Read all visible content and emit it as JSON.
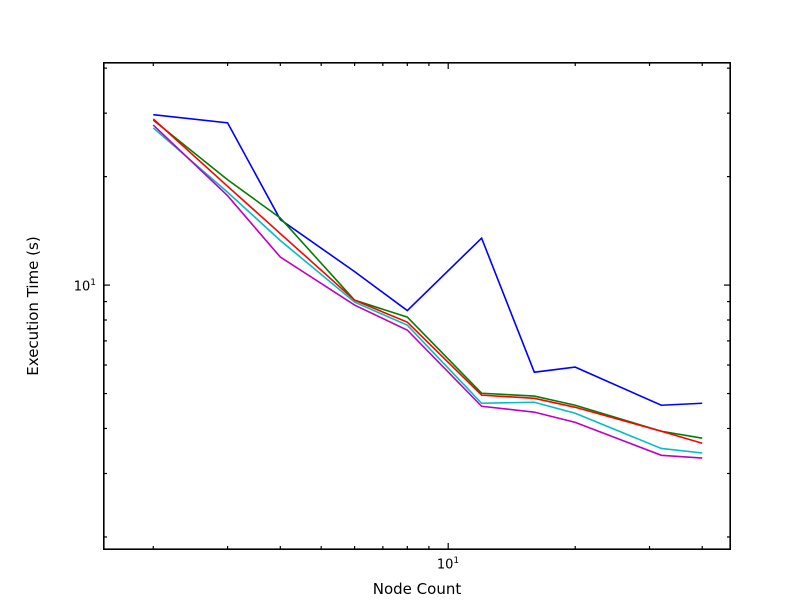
{
  "figure": {
    "background": "#ffffff"
  },
  "chart_data": {
    "type": "line",
    "x_scale": "log",
    "y_scale": "log",
    "title": "",
    "xlabel": "Node Count",
    "ylabel": "Execution Time (s)",
    "grid": false,
    "legend": "none",
    "xlim": [
      1.52,
      46.8
    ],
    "ylim": [
      1.84,
      41.6
    ],
    "frame_color": "#000000",
    "tick_color": "#000000",
    "x": [
      2,
      3,
      4,
      6,
      8,
      12,
      16,
      20,
      32,
      40
    ],
    "series": [
      {
        "name": "blue",
        "color": "#0000ff",
        "values": [
          29.7,
          28.2,
          15.2,
          10.9,
          8.5,
          13.5,
          5.73,
          5.92,
          4.64,
          4.7
        ]
      },
      {
        "name": "green",
        "color": "#007f00",
        "values": [
          28.7,
          19.6,
          15.35,
          9.08,
          8.15,
          5.01,
          4.92,
          4.64,
          3.93,
          3.76
        ]
      },
      {
        "name": "red",
        "color": "#ff0000",
        "values": [
          28.9,
          18.8,
          13.9,
          9.08,
          7.89,
          4.95,
          4.85,
          4.58,
          3.93,
          3.64
        ]
      },
      {
        "name": "cyan",
        "color": "#00bfbf",
        "values": [
          27.3,
          18.1,
          13.3,
          8.97,
          7.74,
          4.7,
          4.73,
          4.41,
          3.52,
          3.42
        ]
      },
      {
        "name": "magenta",
        "color": "#bf00bf",
        "values": [
          27.8,
          17.7,
          11.96,
          8.8,
          7.5,
          4.61,
          4.44,
          4.16,
          3.37,
          3.31
        ]
      }
    ],
    "x_tick_labels": [
      {
        "value": 10,
        "base": "10",
        "exp": "1"
      }
    ],
    "y_tick_labels": [
      {
        "value": 10,
        "base": "10",
        "exp": "1"
      }
    ]
  }
}
